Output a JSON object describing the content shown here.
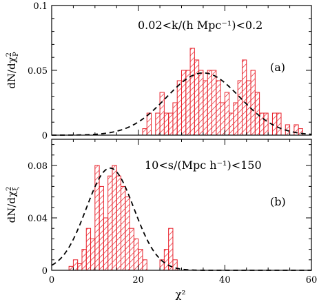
{
  "colors": {
    "hist": "#e8202a",
    "curve": "#000000",
    "axes": "#000000"
  },
  "xlabel": "χ²",
  "chart_data": [
    {
      "id": "a",
      "type": "bar",
      "annotation": "0.02<k/(h Mpc⁻¹)<0.2",
      "panel_label": "(a)",
      "ylabel_main": "dN/dχ",
      "ylabel_sup": "2",
      "ylabel_sub": "P",
      "xlim": [
        0,
        60
      ],
      "ylim": [
        0,
        0.1
      ],
      "yticks": [
        {
          "v": 0,
          "label": "0"
        },
        {
          "v": 0.05,
          "label": "0.05"
        },
        {
          "v": 0.1,
          "label": "0.1"
        }
      ],
      "bin_width": 1,
      "bins": [
        [
          21,
          0.005
        ],
        [
          22,
          0.017
        ],
        [
          23,
          0.0
        ],
        [
          24,
          0.017
        ],
        [
          25,
          0.033
        ],
        [
          26,
          0.017
        ],
        [
          27,
          0.017
        ],
        [
          28,
          0.025
        ],
        [
          29,
          0.042
        ],
        [
          30,
          0.05
        ],
        [
          31,
          0.05
        ],
        [
          32,
          0.067
        ],
        [
          33,
          0.058
        ],
        [
          34,
          0.05
        ],
        [
          35,
          0.042
        ],
        [
          36,
          0.05
        ],
        [
          37,
          0.05
        ],
        [
          38,
          0.042
        ],
        [
          39,
          0.025
        ],
        [
          40,
          0.033
        ],
        [
          41,
          0.017
        ],
        [
          42,
          0.025
        ],
        [
          43,
          0.042
        ],
        [
          44,
          0.058
        ],
        [
          45,
          0.042
        ],
        [
          46,
          0.05
        ],
        [
          47,
          0.033
        ],
        [
          48,
          0.017
        ],
        [
          49,
          0.017
        ],
        [
          50,
          0.0
        ],
        [
          51,
          0.017
        ],
        [
          52,
          0.017
        ],
        [
          53,
          0.0
        ],
        [
          54,
          0.008
        ],
        [
          55,
          0.0
        ],
        [
          56,
          0.008
        ],
        [
          57,
          0.005
        ]
      ],
      "curve": {
        "mu": 35,
        "sigma": 8.5,
        "peak": 0.048
      }
    },
    {
      "id": "b",
      "type": "bar",
      "annotation": "10<s/(Mpc h⁻¹)<150",
      "panel_label": "(b)",
      "ylabel_main": "dN/dχ",
      "ylabel_sup": "2",
      "ylabel_sub": "ξ",
      "xlim": [
        0,
        60
      ],
      "ylim": [
        0,
        0.1
      ],
      "yticks": [
        {
          "v": 0,
          "label": "0"
        },
        {
          "v": 0.04,
          "label": "0.04"
        },
        {
          "v": 0.08,
          "label": "0.08"
        }
      ],
      "bin_width": 1,
      "bins": [
        [
          4,
          0.003
        ],
        [
          5,
          0.008
        ],
        [
          6,
          0.005
        ],
        [
          7,
          0.016
        ],
        [
          8,
          0.032
        ],
        [
          9,
          0.024
        ],
        [
          10,
          0.08
        ],
        [
          11,
          0.064
        ],
        [
          12,
          0.04
        ],
        [
          13,
          0.072
        ],
        [
          14,
          0.08
        ],
        [
          15,
          0.072
        ],
        [
          16,
          0.064
        ],
        [
          17,
          0.056
        ],
        [
          18,
          0.032
        ],
        [
          19,
          0.024
        ],
        [
          20,
          0.016
        ],
        [
          21,
          0.008
        ],
        [
          22,
          0.0
        ],
        [
          23,
          0.0
        ],
        [
          24,
          0.0
        ],
        [
          25,
          0.008
        ],
        [
          26,
          0.016
        ],
        [
          27,
          0.032
        ],
        [
          28,
          0.008
        ]
      ],
      "curve": {
        "mu": 13.5,
        "sigma": 5.5,
        "peak": 0.078
      }
    }
  ],
  "xticks": [
    {
      "v": 0,
      "label": "0"
    },
    {
      "v": 20,
      "label": "20"
    },
    {
      "v": 40,
      "label": "40"
    },
    {
      "v": 60,
      "label": "60"
    }
  ]
}
